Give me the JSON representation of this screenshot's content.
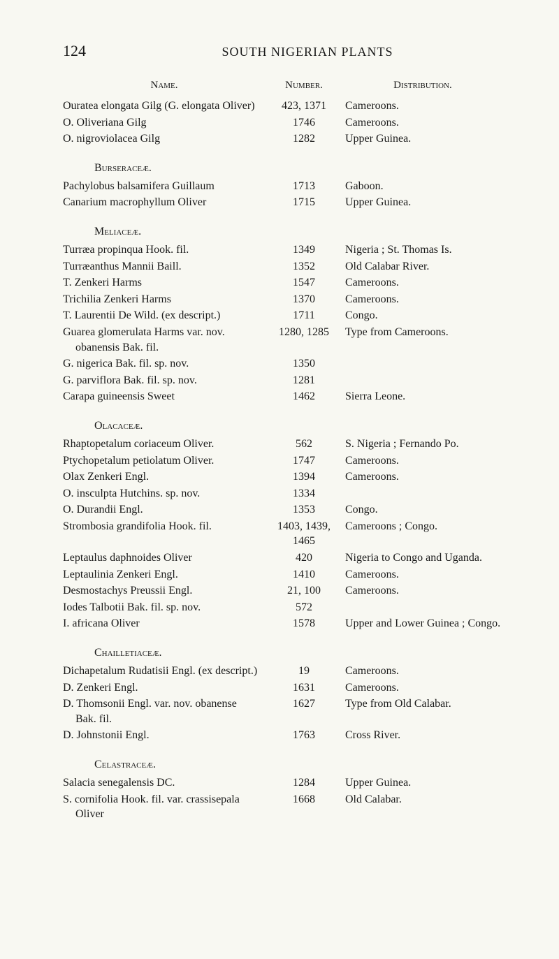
{
  "page_number": "124",
  "page_title": "SOUTH NIGERIAN PLANTS",
  "columns": {
    "name": "Name.",
    "number": "Number.",
    "distribution": "Distribution."
  },
  "sections": [
    {
      "heading": null,
      "rows": [
        {
          "name": "Ouratea elongata Gilg (G. elongata Oliver)",
          "number": "423, 1371",
          "dist": "Cameroons."
        },
        {
          "name": "O. Oliveriana Gilg",
          "number": "1746",
          "dist": "Cameroons."
        },
        {
          "name": "O. nigroviolacea Gilg",
          "number": "1282",
          "dist": "Upper Guinea."
        }
      ]
    },
    {
      "heading": "Burseraceæ.",
      "rows": [
        {
          "name": "Pachylobus balsamifera Guillaum",
          "number": "1713",
          "dist": "Gaboon."
        },
        {
          "name": "Canarium macrophyllum Oliver",
          "number": "1715",
          "dist": "Upper Guinea."
        }
      ]
    },
    {
      "heading": "Meliaceæ.",
      "rows": [
        {
          "name": "Turræa propinqua Hook. fil.",
          "number": "1349",
          "dist": "Nigeria ; St. Thomas Is."
        },
        {
          "name": "Turræanthus Mannii Baill.",
          "number": "1352",
          "dist": "Old Calabar River."
        },
        {
          "name": "T. Zenkeri Harms",
          "number": "1547",
          "dist": "Cameroons."
        },
        {
          "name": "Trichilia Zenkeri Harms",
          "number": "1370",
          "dist": "Cameroons."
        },
        {
          "name": "T. Laurentii De Wild. (ex descript.)",
          "number": "1711",
          "dist": "Congo."
        },
        {
          "name": "Guarea glomerulata Harms var. nov. obanensis Bak. fil.",
          "number": "1280, 1285",
          "dist": "Type from Cameroons."
        },
        {
          "name": "G. nigerica Bak. fil. sp. nov.",
          "number": "1350",
          "dist": ""
        },
        {
          "name": "G. parviflora Bak. fil. sp. nov.",
          "number": "1281",
          "dist": ""
        },
        {
          "name": "Carapa guineensis Sweet",
          "number": "1462",
          "dist": "Sierra Leone."
        }
      ]
    },
    {
      "heading": "Olacaceæ.",
      "rows": [
        {
          "name": "Rhaptopetalum coriaceum Oliver.",
          "number": "562",
          "dist": "S. Nigeria ; Fernando Po."
        },
        {
          "name": "Ptychopetalum petiolatum Oliver.",
          "number": "1747",
          "dist": "Cameroons."
        },
        {
          "name": "Olax Zenkeri Engl.",
          "number": "1394",
          "dist": "Cameroons."
        },
        {
          "name": "O. insculpta Hutchins. sp. nov.",
          "number": "1334",
          "dist": ""
        },
        {
          "name": "O. Durandii Engl.",
          "number": "1353",
          "dist": "Congo."
        },
        {
          "name": "Strombosia grandifolia Hook. fil.",
          "number": "1403, 1439,\n1465",
          "dist": "Cameroons ; Congo."
        },
        {
          "name": "Leptaulus daphnoides Oliver",
          "number": "420",
          "dist": "Nigeria to Congo and Uganda."
        },
        {
          "name": "Leptaulinia Zenkeri Engl.",
          "number": "1410",
          "dist": "Cameroons."
        },
        {
          "name": "Desmostachys Preussii Engl.",
          "number": "21, 100",
          "dist": "Cameroons."
        },
        {
          "name": "Iodes Talbotii Bak. fil. sp. nov.",
          "number": "572",
          "dist": ""
        },
        {
          "name": "I. africana Oliver",
          "number": "1578",
          "dist": "Upper and Lower Guinea ; Congo."
        }
      ]
    },
    {
      "heading": "Chailletiaceæ.",
      "rows": [
        {
          "name": "Dichapetalum Rudatisii Engl. (ex descript.)",
          "number": "19",
          "dist": "Cameroons."
        },
        {
          "name": "D. Zenkeri Engl.",
          "number": "1631",
          "dist": "Cameroons."
        },
        {
          "name": "D. Thomsonii Engl. var. nov. obanense Bak. fil.",
          "number": "1627",
          "dist": "Type from Old Calabar."
        },
        {
          "name": "D. Johnstonii Engl.",
          "number": "1763",
          "dist": "Cross River."
        }
      ]
    },
    {
      "heading": "Celastraceæ.",
      "rows": [
        {
          "name": "Salacia senegalensis DC.",
          "number": "1284",
          "dist": "Upper Guinea."
        },
        {
          "name": "S. cornifolia Hook. fil. var. crassisepala Oliver",
          "number": "1668",
          "dist": "Old Calabar."
        }
      ]
    }
  ]
}
